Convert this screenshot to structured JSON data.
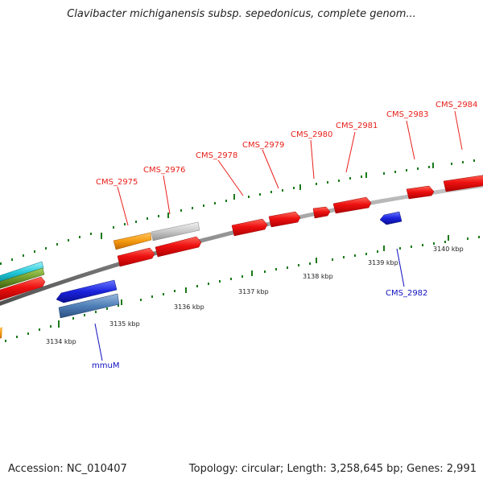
{
  "header": {
    "title": "Clavibacter michiganensis subsp. sepedonicus, complete genom..."
  },
  "footer": {
    "accession": "Accession: NC_010407",
    "summary": "Topology: circular; Length: 3,258,645 bp; Genes: 2,991"
  },
  "colors": {
    "forward_label": "#e8201a",
    "reverse_label": "#1010c0",
    "cds_red": "#ee1111",
    "cds_orange": "#f59a10",
    "cds_gray": "#c8c8c8",
    "cds_blue": "#1a22dd",
    "cds_steel": "#4f7fb8",
    "cds_cyan": "#22c8d8",
    "cds_olive": "#6e9a2a",
    "backbone": "#8a8a8a",
    "tick": "#1a7a1a"
  },
  "scale": {
    "unit": "kbp",
    "tick_labels": [
      "3134 kbp",
      "3135 kbp",
      "3136 kbp",
      "3137 kbp",
      "3138 kbp",
      "3139 kbp",
      "3140 kbp"
    ]
  },
  "genes": [
    {
      "name": "CMS_2975",
      "strand": "forward"
    },
    {
      "name": "CMS_2976",
      "strand": "forward"
    },
    {
      "name": "CMS_2978",
      "strand": "forward"
    },
    {
      "name": "CMS_2979",
      "strand": "forward"
    },
    {
      "name": "CMS_2980",
      "strand": "forward"
    },
    {
      "name": "CMS_2981",
      "strand": "forward"
    },
    {
      "name": "CMS_2983",
      "strand": "forward"
    },
    {
      "name": "CMS_2984",
      "strand": "forward"
    },
    {
      "name": "CMS_2982",
      "strand": "reverse"
    },
    {
      "name": "mmuM",
      "strand": "reverse"
    }
  ]
}
